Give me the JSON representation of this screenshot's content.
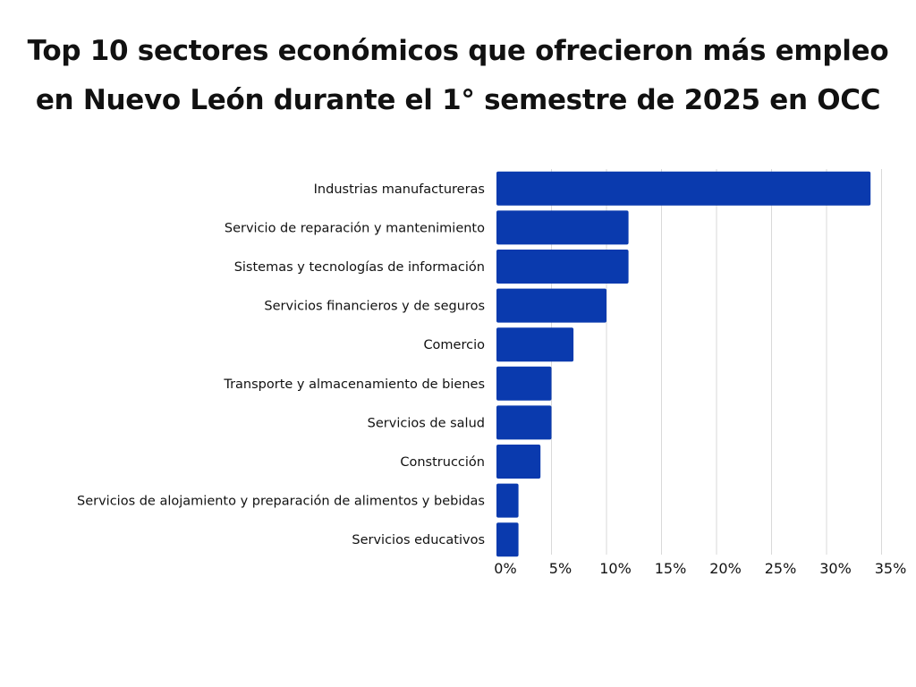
{
  "chart_data": {
    "type": "bar",
    "orientation": "horizontal",
    "title": "Top 10 sectores económicos que ofrecieron más empleo en Nuevo León durante el 1° semestre de 2025 en OCC",
    "xlabel": "",
    "ylabel": "",
    "categories": [
      "Industrias manufactureras",
      "Servicio de reparación y mantenimiento",
      "Sistemas y tecnologías de información",
      "Servicios financieros y de seguros",
      "Comercio",
      "Transporte y almacenamiento de bienes",
      "Servicios de salud",
      "Construcción",
      "Servicios de alojamiento y preparación de alimentos y bebidas",
      "Servicios educativos"
    ],
    "values": [
      34,
      12,
      12,
      10,
      7,
      5,
      5,
      4,
      2,
      2
    ],
    "xlim": [
      0,
      35
    ],
    "xticks": [
      0,
      5,
      10,
      15,
      20,
      25,
      30,
      35
    ],
    "xtick_labels": [
      "0%",
      "5%",
      "10%",
      "15%",
      "20%",
      "25%",
      "30%",
      "35%"
    ],
    "grid": true,
    "legend": "none",
    "bar_color": "#0A3AAE",
    "grid_color": "#D9D9D9"
  }
}
